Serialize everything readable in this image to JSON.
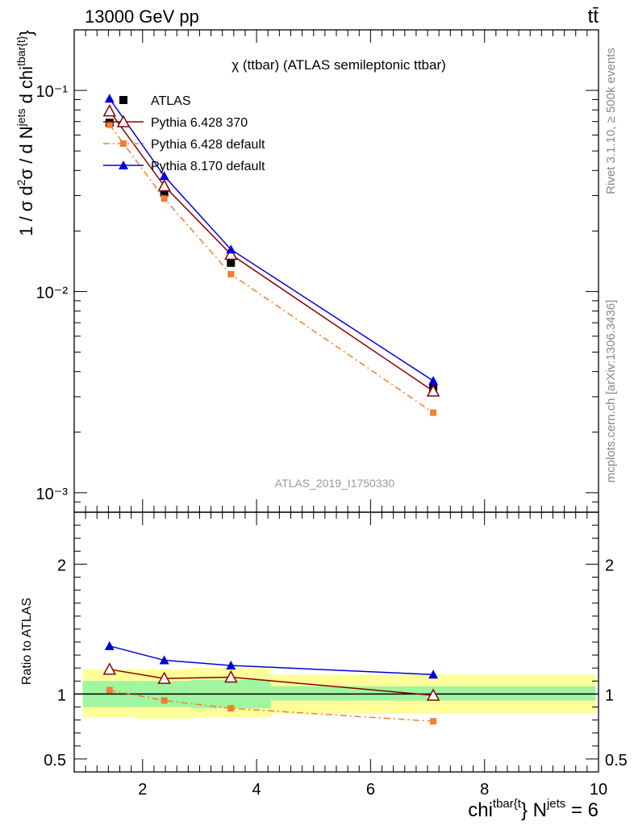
{
  "header": {
    "energy_label": "13000 GeV pp",
    "process_label": "tt̄"
  },
  "side_labels": {
    "rivet": "Rivet 3.1.10, ≥ 500k events",
    "mcplots": "mcplots.cern.ch [arXiv:1306.3436]"
  },
  "chart_data": [
    {
      "type": "line",
      "title": "χ (ttbar) (ATLAS semileptonic ttbar)",
      "ylabel": "1 / σ d²σ / d N^jets d chi^tbar{t}",
      "yscale": "log",
      "ylim": [
        0.0008,
        0.2
      ],
      "xlim": [
        0.8,
        10
      ],
      "y_tick_labels": [
        "10⁻³",
        "10⁻²",
        "10⁻¹",
        "1"
      ],
      "watermark": "ATLAS_2019_I1750330",
      "legend_placement": "top-left",
      "x": [
        1.42,
        2.38,
        3.55,
        7.1
      ],
      "series": [
        {
          "name": "ATLAS",
          "color": "#000000",
          "marker": "square",
          "values": [
            0.069,
            0.031,
            0.0139,
            0.0033
          ]
        },
        {
          "name": "Pythia 6.428 370",
          "color": "#8b0000",
          "marker": "open-triangle",
          "values": [
            0.079,
            0.0335,
            0.0153,
            0.0032
          ]
        },
        {
          "name": "Pythia 6.428 default",
          "color": "#f08030",
          "marker": "square-small",
          "line": "dash-dot",
          "values": [
            0.0675,
            0.029,
            0.0122,
            0.0025
          ]
        },
        {
          "name": "Pythia 8.170 default",
          "color": "#0000dd",
          "marker": "triangle",
          "values": [
            0.091,
            0.0375,
            0.0162,
            0.0036
          ]
        }
      ]
    },
    {
      "type": "line",
      "ylabel": "Ratio to ATLAS",
      "xlabel": "chi^tbar{t} N^jets = 6",
      "ylim": [
        0.4,
        2.4
      ],
      "xlim": [
        0.8,
        10
      ],
      "x_tick_labels": [
        "2",
        "4",
        "6",
        "8",
        "10"
      ],
      "y_tick_labels": [
        "0.5",
        "1",
        "2"
      ],
      "bands": {
        "bins": [
          [
            0.95,
            1.9
          ],
          [
            1.9,
            2.85
          ],
          [
            2.85,
            4.25
          ],
          [
            4.25,
            9.95
          ]
        ],
        "stat": [
          [
            0.9,
            1.1
          ],
          [
            0.9,
            1.1
          ],
          [
            0.89,
            1.11
          ],
          [
            0.95,
            1.06
          ]
        ],
        "total": [
          [
            0.82,
            1.19
          ],
          [
            0.81,
            1.19
          ],
          [
            0.82,
            1.2
          ],
          [
            0.85,
            1.15
          ]
        ],
        "colors": {
          "stat": "#a0f5a0",
          "total": "#fffe99"
        }
      },
      "x": [
        1.42,
        2.38,
        3.55,
        7.1
      ],
      "series": [
        {
          "name": "Pythia 6.428 370",
          "color": "#8b0000",
          "marker": "open-triangle",
          "values": [
            1.19,
            1.12,
            1.13,
            0.99
          ]
        },
        {
          "name": "Pythia 6.428 default",
          "color": "#f08030",
          "marker": "square-small",
          "line": "dash-dot",
          "values": [
            1.03,
            0.95,
            0.89,
            0.79
          ]
        },
        {
          "name": "Pythia 8.170 default",
          "color": "#0000dd",
          "marker": "triangle",
          "values": [
            1.37,
            1.26,
            1.22,
            1.15
          ]
        }
      ]
    }
  ]
}
